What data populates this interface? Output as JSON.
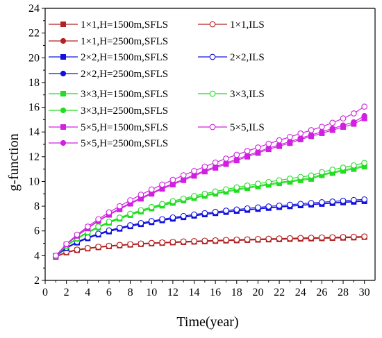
{
  "colors": {
    "1x1": "#b22222",
    "2x2": "#1010e0",
    "3x3": "#22dd22",
    "5x5": "#d020e0"
  },
  "chart_data": {
    "type": "line",
    "xlabel": "Time(year)",
    "ylabel": "g-function",
    "xlim": [
      0,
      31
    ],
    "ylim": [
      2,
      24
    ],
    "xticks": [
      "0",
      "2",
      "4",
      "6",
      "8",
      "10",
      "12",
      "14",
      "16",
      "18",
      "20",
      "22",
      "24",
      "26",
      "28",
      "30"
    ],
    "yticks": [
      "2",
      "4",
      "6",
      "8",
      "10",
      "12",
      "14",
      "16",
      "18",
      "20",
      "22",
      "24"
    ],
    "grid": false,
    "legend_position": "top-left",
    "x": [
      1,
      2,
      3,
      4,
      5,
      6,
      7,
      8,
      9,
      10,
      11,
      12,
      13,
      14,
      15,
      16,
      17,
      18,
      19,
      20,
      21,
      22,
      23,
      24,
      25,
      26,
      27,
      28,
      29,
      30
    ],
    "series": [
      {
        "name": "1×1,H=1500m,SFLS",
        "color_key": "1x1",
        "marker": "square-filled",
        "values": [
          3.9,
          4.25,
          4.44,
          4.57,
          4.67,
          4.75,
          4.82,
          4.88,
          4.93,
          4.98,
          5.02,
          5.06,
          5.09,
          5.12,
          5.15,
          5.18,
          5.21,
          5.23,
          5.26,
          5.28,
          5.3,
          5.32,
          5.34,
          5.36,
          5.38,
          5.4,
          5.42,
          5.44,
          5.46,
          5.5
        ]
      },
      {
        "name": "1×1,H=2500m,SFLS",
        "color_key": "1x1",
        "marker": "circle-filled",
        "values": [
          3.91,
          4.26,
          4.45,
          4.58,
          4.68,
          4.76,
          4.83,
          4.89,
          4.94,
          4.99,
          5.03,
          5.07,
          5.1,
          5.13,
          5.16,
          5.19,
          5.22,
          5.24,
          5.27,
          5.29,
          5.31,
          5.33,
          5.35,
          5.37,
          5.39,
          5.41,
          5.43,
          5.45,
          5.47,
          5.52
        ]
      },
      {
        "name": "1×1,ILS",
        "color_key": "1x1",
        "marker": "circle-open",
        "values": [
          3.93,
          4.3,
          4.49,
          4.62,
          4.72,
          4.8,
          4.87,
          4.93,
          4.98,
          5.03,
          5.07,
          5.11,
          5.15,
          5.18,
          5.21,
          5.24,
          5.27,
          5.3,
          5.32,
          5.35,
          5.37,
          5.39,
          5.41,
          5.43,
          5.45,
          5.47,
          5.49,
          5.51,
          5.53,
          5.55
        ]
      },
      {
        "name": "2×2,H=1500m,SFLS",
        "color_key": "2x2",
        "marker": "square-filled",
        "values": [
          3.94,
          4.6,
          5.05,
          5.4,
          5.7,
          5.95,
          6.17,
          6.37,
          6.54,
          6.7,
          6.85,
          6.98,
          7.1,
          7.22,
          7.33,
          7.43,
          7.52,
          7.61,
          7.69,
          7.77,
          7.85,
          7.92,
          7.99,
          8.06,
          8.12,
          8.18,
          8.24,
          8.3,
          8.35,
          8.4
        ]
      },
      {
        "name": "2×2,H=2500m,SFLS",
        "color_key": "2x2",
        "marker": "circle-filled",
        "values": [
          3.95,
          4.62,
          5.07,
          5.43,
          5.73,
          5.98,
          6.2,
          6.4,
          6.57,
          6.73,
          6.88,
          7.01,
          7.13,
          7.25,
          7.36,
          7.46,
          7.55,
          7.64,
          7.72,
          7.8,
          7.88,
          7.95,
          8.02,
          8.09,
          8.15,
          8.21,
          8.27,
          8.33,
          8.38,
          8.45
        ]
      },
      {
        "name": "2×2,ILS",
        "color_key": "2x2",
        "marker": "circle-open",
        "values": [
          3.96,
          4.65,
          5.12,
          5.48,
          5.78,
          6.04,
          6.26,
          6.46,
          6.64,
          6.8,
          6.95,
          7.09,
          7.21,
          7.33,
          7.44,
          7.54,
          7.64,
          7.73,
          7.82,
          7.9,
          7.98,
          8.05,
          8.12,
          8.19,
          8.26,
          8.32,
          8.38,
          8.44,
          8.5,
          8.55
        ]
      },
      {
        "name": "3×3,H=1500m,SFLS",
        "color_key": "3x3",
        "marker": "square-filled",
        "values": [
          3.96,
          4.78,
          5.35,
          5.85,
          6.27,
          6.65,
          6.98,
          7.28,
          7.56,
          7.81,
          8.04,
          8.26,
          8.46,
          8.65,
          8.83,
          9.0,
          9.16,
          9.31,
          9.45,
          9.59,
          9.72,
          9.85,
          9.97,
          10.09,
          10.2,
          10.5,
          10.68,
          10.85,
          11.0,
          11.2
        ]
      },
      {
        "name": "3×3,H=2500m,SFLS",
        "color_key": "3x3",
        "marker": "circle-filled",
        "values": [
          3.97,
          4.79,
          5.38,
          5.88,
          6.3,
          6.68,
          7.02,
          7.33,
          7.61,
          7.87,
          8.1,
          8.32,
          8.53,
          8.72,
          8.9,
          9.07,
          9.23,
          9.39,
          9.53,
          9.67,
          9.8,
          9.93,
          10.05,
          10.17,
          10.28,
          10.58,
          10.76,
          10.93,
          11.08,
          11.3
        ]
      },
      {
        "name": "3×3,ILS",
        "color_key": "3x3",
        "marker": "circle-open",
        "values": [
          3.98,
          4.82,
          5.42,
          5.92,
          6.35,
          6.74,
          7.08,
          7.39,
          7.68,
          7.94,
          8.18,
          8.41,
          8.62,
          8.82,
          9.01,
          9.19,
          9.36,
          9.52,
          9.67,
          9.82,
          9.96,
          10.1,
          10.23,
          10.36,
          10.48,
          10.75,
          10.95,
          11.12,
          11.3,
          11.5
        ]
      },
      {
        "name": "5×5,H=1500m,SFLS",
        "color_key": "5x5",
        "marker": "square-filled",
        "values": [
          3.98,
          4.9,
          5.6,
          6.2,
          6.8,
          7.3,
          7.75,
          8.2,
          8.6,
          9.0,
          9.4,
          9.75,
          10.1,
          10.45,
          10.8,
          11.1,
          11.4,
          11.7,
          12.0,
          12.3,
          12.6,
          12.85,
          13.1,
          13.4,
          13.65,
          13.9,
          14.15,
          14.4,
          14.65,
          15.1
        ]
      },
      {
        "name": "5×5,H=2500m,SFLS",
        "color_key": "5x5",
        "marker": "circle-filled",
        "values": [
          3.99,
          4.92,
          5.63,
          6.24,
          6.84,
          7.35,
          7.81,
          8.26,
          8.67,
          9.07,
          9.47,
          9.83,
          10.18,
          10.53,
          10.88,
          11.19,
          11.5,
          11.8,
          12.1,
          12.4,
          12.7,
          12.96,
          13.22,
          13.5,
          13.76,
          14.02,
          14.28,
          14.54,
          14.8,
          15.3
        ]
      },
      {
        "name": "5×5,ILS",
        "color_key": "5x5",
        "marker": "circle-open",
        "values": [
          4.0,
          4.95,
          5.7,
          6.35,
          6.95,
          7.5,
          8.0,
          8.48,
          8.93,
          9.35,
          9.75,
          10.13,
          10.5,
          10.85,
          11.2,
          11.53,
          11.85,
          12.16,
          12.46,
          12.75,
          13.05,
          13.33,
          13.6,
          13.88,
          14.15,
          14.42,
          14.75,
          15.1,
          15.5,
          16.05
        ]
      }
    ],
    "legend": [
      {
        "label": "1×1,H=1500m,SFLS",
        "series": 0
      },
      {
        "label": "1×1,ILS",
        "series": 2
      },
      {
        "label": "1×1,H=2500m,SFLS",
        "series": 1
      },
      {
        "label": "2×2,H=1500m,SFLS",
        "series": 3
      },
      {
        "label": "2×2,ILS",
        "series": 5
      },
      {
        "label": "2×2,H=2500m,SFLS",
        "series": 4
      },
      {
        "label": "3×3,H=1500m,SFLS",
        "series": 6
      },
      {
        "label": "3×3,ILS",
        "series": 8
      },
      {
        "label": "3×3,H=2500m,SFLS",
        "series": 7
      },
      {
        "label": "5×5,H=1500m,SFLS",
        "series": 9
      },
      {
        "label": "5×5,ILS",
        "series": 11
      },
      {
        "label": "5×5,H=2500m,SFLS",
        "series": 10
      }
    ]
  }
}
